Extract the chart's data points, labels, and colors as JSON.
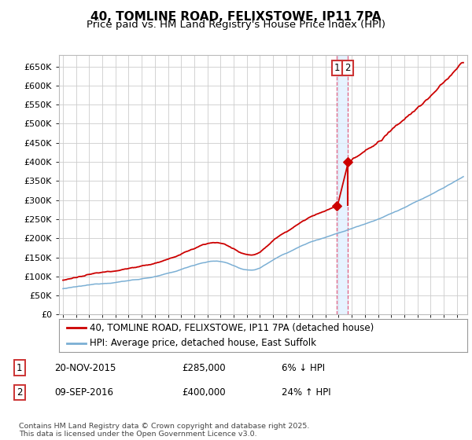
{
  "title": "40, TOMLINE ROAD, FELIXSTOWE, IP11 7PA",
  "subtitle": "Price paid vs. HM Land Registry's House Price Index (HPI)",
  "ylim": [
    0,
    680000
  ],
  "yticks": [
    0,
    50000,
    100000,
    150000,
    200000,
    250000,
    300000,
    350000,
    400000,
    450000,
    500000,
    550000,
    600000,
    650000
  ],
  "legend_label1": "40, TOMLINE ROAD, FELIXSTOWE, IP11 7PA (detached house)",
  "legend_label2": "HPI: Average price, detached house, East Suffolk",
  "line1_color": "#cc0000",
  "line2_color": "#7bafd4",
  "vline_color": "#e06080",
  "shade_color": "#ddeeff",
  "annotation1": {
    "label": "1",
    "date": "20-NOV-2015",
    "price": "£285,000",
    "change": "6% ↓ HPI"
  },
  "annotation2": {
    "label": "2",
    "date": "09-SEP-2016",
    "price": "£400,000",
    "change": "24% ↑ HPI"
  },
  "footnote": "Contains HM Land Registry data © Crown copyright and database right 2025.\nThis data is licensed under the Open Government Licence v3.0.",
  "background_color": "#ffffff",
  "grid_color": "#cccccc",
  "title_fontsize": 11,
  "subtitle_fontsize": 9.5,
  "tick_fontsize": 8,
  "legend_fontsize": 8.5,
  "sale1_year": 2015.88,
  "sale2_year": 2016.68,
  "sale1_price": 285000,
  "sale2_price": 400000
}
